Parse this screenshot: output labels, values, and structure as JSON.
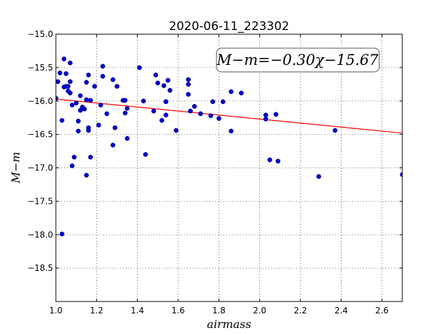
{
  "chart_data": {
    "type": "scatter",
    "title": "2020-06-11_223302",
    "xlabel": "airmass",
    "ylabel": "M−m",
    "xlim": [
      1.0,
      2.7
    ],
    "ylim": [
      -19.0,
      -15.0
    ],
    "y_inverted": true,
    "grid": true,
    "x_ticks": [
      "1.0",
      "1.2",
      "1.4",
      "1.6",
      "1.8",
      "2.0",
      "2.2",
      "2.4",
      "2.6"
    ],
    "y_ticks": [
      "−15.0",
      "−15.5",
      "−16.0",
      "−16.5",
      "−17.0",
      "−17.5",
      "−18.0",
      "−18.5"
    ],
    "annotation": "M−m=−0.30χ−15.67",
    "fit": {
      "slope": -0.3,
      "intercept": -15.67,
      "color": "#ff0000"
    },
    "point_color": "#0000cc",
    "points": [
      [
        1.0,
        -15.96
      ],
      [
        1.01,
        -15.71
      ],
      [
        1.02,
        -15.58
      ],
      [
        1.03,
        -16.29
      ],
      [
        1.03,
        -17.99
      ],
      [
        1.04,
        -15.79
      ],
      [
        1.04,
        -15.37
      ],
      [
        1.05,
        -15.59
      ],
      [
        1.05,
        -15.78
      ],
      [
        1.06,
        -15.85
      ],
      [
        1.06,
        -15.78
      ],
      [
        1.07,
        -15.71
      ],
      [
        1.07,
        -15.43
      ],
      [
        1.07,
        -15.88
      ],
      [
        1.08,
        -16.97
      ],
      [
        1.08,
        -16.06
      ],
      [
        1.09,
        -16.84
      ],
      [
        1.1,
        -16.03
      ],
      [
        1.11,
        -16.3
      ],
      [
        1.11,
        -16.45
      ],
      [
        1.12,
        -15.92
      ],
      [
        1.12,
        -16.14
      ],
      [
        1.13,
        -16.09
      ],
      [
        1.14,
        -16.12
      ],
      [
        1.15,
        -17.11
      ],
      [
        1.15,
        -15.72
      ],
      [
        1.15,
        -15.98
      ],
      [
        1.16,
        -15.61
      ],
      [
        1.16,
        -16.4
      ],
      [
        1.16,
        -16.44
      ],
      [
        1.17,
        -16.84
      ],
      [
        1.17,
        -15.99
      ],
      [
        1.19,
        -15.78
      ],
      [
        1.21,
        -16.36
      ],
      [
        1.22,
        -16.06
      ],
      [
        1.23,
        -15.48
      ],
      [
        1.23,
        -15.63
      ],
      [
        1.25,
        -16.19
      ],
      [
        1.28,
        -15.68
      ],
      [
        1.28,
        -16.66
      ],
      [
        1.29,
        -16.4
      ],
      [
        1.3,
        -15.78
      ],
      [
        1.33,
        -15.99
      ],
      [
        1.34,
        -16.18
      ],
      [
        1.34,
        -15.99
      ],
      [
        1.35,
        -16.11
      ],
      [
        1.35,
        -16.56
      ],
      [
        1.41,
        -15.5
      ],
      [
        1.43,
        -16.0
      ],
      [
        1.44,
        -16.8
      ],
      [
        1.48,
        -16.15
      ],
      [
        1.49,
        -15.61
      ],
      [
        1.5,
        -15.73
      ],
      [
        1.52,
        -16.29
      ],
      [
        1.53,
        -15.77
      ],
      [
        1.54,
        -16.01
      ],
      [
        1.54,
        -16.01
      ],
      [
        1.54,
        -16.21
      ],
      [
        1.55,
        -15.69
      ],
      [
        1.56,
        -15.84
      ],
      [
        1.59,
        -16.44
      ],
      [
        1.65,
        -15.68
      ],
      [
        1.65,
        -15.75
      ],
      [
        1.65,
        -15.9
      ],
      [
        1.66,
        -16.15
      ],
      [
        1.68,
        -16.08
      ],
      [
        1.71,
        -16.19
      ],
      [
        1.76,
        -16.22
      ],
      [
        1.77,
        -16.01
      ],
      [
        1.8,
        -16.26
      ],
      [
        1.82,
        -16.01
      ],
      [
        1.86,
        -15.86
      ],
      [
        1.86,
        -16.45
      ],
      [
        1.91,
        -15.88
      ],
      [
        2.03,
        -16.21
      ],
      [
        2.03,
        -16.27
      ],
      [
        2.05,
        -16.88
      ],
      [
        2.08,
        -16.2
      ],
      [
        2.09,
        -16.9
      ],
      [
        2.29,
        -17.13
      ],
      [
        2.37,
        -16.44
      ],
      [
        2.7,
        -17.1
      ]
    ]
  }
}
